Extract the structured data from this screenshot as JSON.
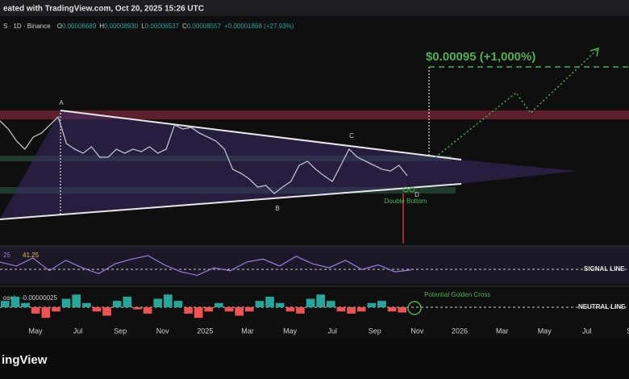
{
  "header": {
    "title": "eated with TradingView.com, Oct 20, 2025 15:26 UTC"
  },
  "symbol_bar": {
    "symbol": "S · 1D · Binance",
    "ohlc": [
      {
        "label": "O",
        "value": "0.00006689"
      },
      {
        "label": "H",
        "value": "0.00008930"
      },
      {
        "label": "L",
        "value": "0.00006537"
      },
      {
        "label": "C",
        "value": "0.00008557"
      }
    ],
    "change": "+0.00001868 (+27.93%)"
  },
  "chart_data": {
    "type": "line",
    "color": "#b9c0c8",
    "values": [
      0.0001023,
      9.984e-05,
      9.615e-05,
      9.369e-05,
      9.738e-05,
      9.861e-05,
      0.00010107,
      0.00010353,
      9.541e-05,
      9.369e-05,
      9.246e-05,
      9.443e-05,
      9.123e-05,
      9.123e-05,
      9.369e-05,
      9.246e-05,
      9.369e-05,
      9.295e-05,
      9.443e-05,
      9.246e-05,
      9.369e-05,
      0.00010107,
      9.984e-05,
      0.00010033,
      9.861e-05,
      9.738e-05,
      9.615e-05,
      9.369e-05,
      8.754e-05,
      8.631e-05,
      8.459e-05,
      8.213e-05,
      8.262e-05,
      8.016e-05,
      8.213e-05,
      8.385e-05,
      8.877e-05,
      9e-05,
      8.754e-05,
      8.557e-05,
      8.385e-05,
      8.877e-05,
      9.369e-05,
      9.123e-05,
      9e-05,
      8.877e-05,
      8.754e-05,
      8.705e-05,
      8.877e-05,
      8.557e-05
    ],
    "ylim": [
      6.54e-05,
      0.00013428
    ]
  },
  "rsi": {
    "label": "25",
    "color": "#9b7be0",
    "values": [
      55,
      48,
      62,
      40,
      58,
      45,
      35,
      52,
      60,
      66,
      50,
      38,
      32,
      45,
      40,
      55,
      60,
      48,
      65,
      52,
      45,
      58,
      42,
      50,
      38,
      41.25
    ],
    "ylim": [
      20,
      80
    ],
    "signal_label": "SIGNAL LINE"
  },
  "macd": {
    "label": "ose)",
    "value_label": "-0.00000025",
    "ylim": [
      -8e-07,
      8e-07
    ],
    "values": [
      3e-07,
      5e-07,
      2e-07,
      -3e-07,
      -5e-07,
      -2e-07,
      4e-07,
      6e-07,
      2e-07,
      -2e-07,
      -4e-07,
      3e-07,
      5e-07,
      -1e-07,
      -3e-07,
      4e-07,
      6e-07,
      3e-07,
      -3e-07,
      -5e-07,
      -2e-07,
      2e-07,
      -2e-07,
      -4e-07,
      -2e-07,
      3e-07,
      5e-07,
      2e-07,
      -2e-07,
      -3e-07,
      4e-07,
      6e-07,
      3e-07,
      -2e-07,
      -3e-07,
      -2e-07,
      2e-07,
      3e-07,
      -2e-07,
      -2.5e-07
    ],
    "neutral_label": "NEUTRAL LINE",
    "cross_label": "Potential Golden Cross"
  },
  "annotations": {
    "target": "$0.00095 (+1,000%)",
    "a": "A",
    "b": "B",
    "c": "C",
    "d": "D",
    "double_bottom": "Double Bottom"
  },
  "x_axis_labels": [
    "May",
    "Jul",
    "Sep",
    "Nov",
    "2025",
    "Mar",
    "May",
    "Jul",
    "Sep",
    "Nov",
    "2026",
    "Mar",
    "May",
    "Jul",
    "S"
  ],
  "footer": {
    "logo": "ingView"
  }
}
